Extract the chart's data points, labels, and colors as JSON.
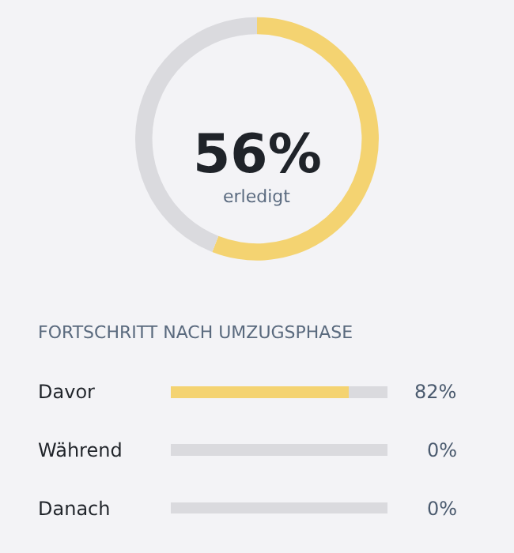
{
  "chart_data": [
    {
      "type": "donut",
      "categories": [
        null,
        null
      ],
      "values": [
        56,
        44
      ],
      "colors": [
        "#f4d371",
        "#dadade"
      ],
      "annotations": [
        "56%",
        "erledigt"
      ]
    },
    {
      "type": "bar",
      "orientation": "horizontal",
      "stacked": true,
      "title": "FORTSCHRITT NACH UMZUGSPHASE",
      "categories": [
        "Davor",
        "Während",
        "Danach"
      ],
      "xlim": [
        0,
        100
      ],
      "tick_labels": "y",
      "series": [
        {
          "color": "#f4d371",
          "values": [
            82,
            0,
            0
          ],
          "value_labels": [
            "82%",
            "0%",
            "0%"
          ]
        },
        {
          "color": "#dadade",
          "values": [
            18,
            100,
            100
          ]
        }
      ]
    }
  ]
}
